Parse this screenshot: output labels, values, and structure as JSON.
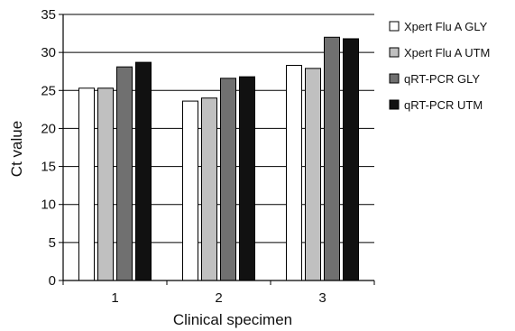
{
  "chart_data": {
    "type": "bar",
    "categories": [
      "1",
      "2",
      "3"
    ],
    "series": [
      {
        "name": "Xpert Flu A GLY",
        "values": [
          25.3,
          23.6,
          28.3
        ],
        "color": "#ffffff"
      },
      {
        "name": "Xpert Flu A UTM",
        "values": [
          25.3,
          24.0,
          27.9
        ],
        "color": "#c0c0c0"
      },
      {
        "name": "qRT-PCR GLY",
        "values": [
          28.1,
          26.6,
          32.0
        ],
        "color": "#707070"
      },
      {
        "name": "qRT-PCR UTM",
        "values": [
          28.7,
          26.8,
          31.8
        ],
        "color": "#111111"
      }
    ],
    "xlabel": "Clinical specimen",
    "ylabel": "Ct value",
    "ylim": [
      0,
      35
    ],
    "yticks": [
      "0",
      "5",
      "10",
      "15",
      "20",
      "25",
      "30",
      "35"
    ],
    "grid": "horizontal",
    "legend_position": "right"
  }
}
